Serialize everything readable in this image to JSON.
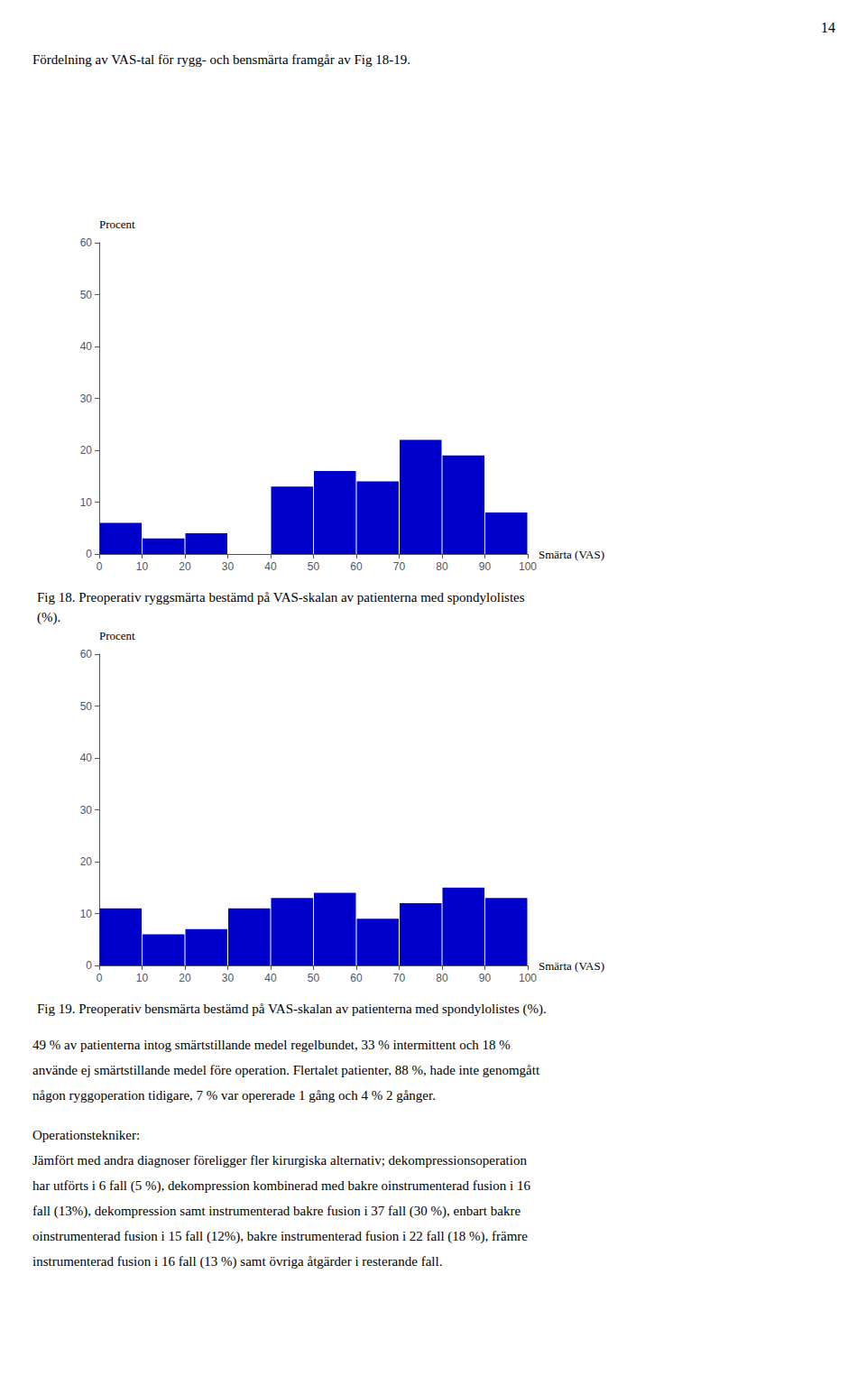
{
  "page_texts": {
    "page_number": "14",
    "intro": "Fördelning av VAS-tal för rygg- och bensmärta framgår av Fig 18-19.",
    "body": [
      "49 % av patienterna intog smärtstillande medel regelbundet, 33 % intermittent och 18 %",
      "använde ej smärtstillande medel före operation. Flertalet patienter, 88 %, hade inte genomgått",
      "någon ryggoperation tidigare, 7 % var opererade 1 gång och 4 % 2 gånger."
    ],
    "section_heading": "Operationstekniker:",
    "section_body": [
      "Jämfört med andra diagnoser föreligger fler kirurgiska alternativ; dekompressionsoperation",
      "har utförts i 6 fall (5 %), dekompression kombinerad med bakre oinstrumenterad fusion i 16",
      "fall (13%), dekompression samt instrumenterad bakre fusion i 37 fall (30 %), enbart bakre",
      "oinstrumenterad fusion i 15 fall (12%), bakre instrumenterad fusion i 22 fall (18 %), främre",
      "instrumenterad fusion i 16 fall (13 %) samt övriga åtgärder i resterande fall."
    ]
  },
  "chart_data": [
    {
      "type": "histogram",
      "title": [
        "Fig 18. Preoperativ ryggsmärta bestämd på VAS-skalan av patienterna med spondylolistes",
        "(%)."
      ],
      "x_label": "Smärta (VAS)",
      "y_label": "Procent",
      "bins": [
        0,
        10,
        20,
        30,
        40,
        50,
        60,
        70,
        80,
        90,
        100
      ],
      "values": [
        6,
        3,
        4,
        0,
        13,
        16,
        14,
        22,
        19,
        8
      ],
      "color": "#0000CC",
      "xlim": [
        0,
        100
      ],
      "xticks": [
        0,
        10,
        20,
        30,
        40,
        50,
        60,
        70,
        80,
        90,
        100
      ],
      "ylim": [
        0,
        60
      ],
      "yticks": [
        0,
        10,
        20,
        30,
        40,
        50,
        60
      ],
      "grid": false
    },
    {
      "type": "histogram",
      "title": [
        "Fig 19. Preoperativ bensmärta bestämd på VAS-skalan av patienterna med spondylolistes (%)."
      ],
      "x_label": "Smärta (VAS)",
      "y_label": "Procent",
      "bins": [
        0,
        10,
        20,
        30,
        40,
        50,
        60,
        70,
        80,
        90,
        100
      ],
      "values": [
        11,
        6,
        7,
        11,
        13,
        14,
        9,
        12,
        15,
        13
      ],
      "color": "#0000CC",
      "xlim": [
        0,
        100
      ],
      "xticks": [
        0,
        10,
        20,
        30,
        40,
        50,
        60,
        70,
        80,
        90,
        100
      ],
      "ylim": [
        0,
        60
      ],
      "yticks": [
        0,
        10,
        20,
        30,
        40,
        50,
        60
      ],
      "grid": false
    }
  ]
}
